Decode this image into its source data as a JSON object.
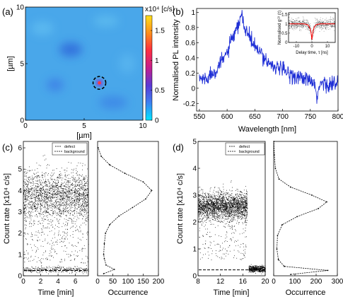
{
  "figure": {
    "panels": [
      {
        "id": "a",
        "label": "(a)"
      },
      {
        "id": "b",
        "label": "(b)"
      },
      {
        "id": "c",
        "label": "(c)"
      },
      {
        "id": "d",
        "label": "(d)"
      }
    ]
  },
  "chart_data": [
    {
      "panel": "(a)",
      "type": "heatmap",
      "title": "",
      "xlabel": "[µm]",
      "ylabel": "[µm]",
      "xlim": [
        0,
        10
      ],
      "ylim": [
        0,
        10
      ],
      "xticks": [
        "0",
        "5",
        "10"
      ],
      "yticks": [
        "0",
        "5",
        "10"
      ],
      "colorbar": {
        "label": "x10⁴ [c/s]",
        "range": [
          0,
          1.75
        ],
        "ticks": [
          "0",
          "0.5",
          "1",
          "1.5"
        ],
        "tick_values": [
          0,
          0.5,
          1,
          1.5
        ],
        "colors": [
          "#00e5ff",
          "#3f7ff0",
          "#5a3ad6",
          "#c41e8e",
          "#ff2e3f",
          "#ff8c1a",
          "#ffe01a"
        ]
      },
      "background_color": "#49a7ea",
      "marker": {
        "style": "dashed circle",
        "x": 6.3,
        "y": 3.3,
        "color": "#000000"
      },
      "hotspot": {
        "x": 6.3,
        "y": 3.3,
        "value": 1.6
      }
    },
    {
      "panel": "(b)",
      "type": "line",
      "title": "",
      "xlabel": "Wavelength [nm]",
      "ylabel": "Normalised PL intensity",
      "xlim": [
        545,
        800
      ],
      "ylim": [
        -0.3,
        1.05
      ],
      "xticks": [
        550,
        600,
        650,
        700,
        750,
        800
      ],
      "yticks": [
        -0.2,
        0,
        0.2,
        0.4,
        0.6,
        0.8,
        1
      ],
      "series": [
        {
          "color": "#1f2fd6",
          "x": [
            550,
            560,
            570,
            580,
            590,
            600,
            605,
            610,
            615,
            620,
            623,
            626,
            628,
            632,
            638,
            645,
            655,
            665,
            675,
            690,
            705,
            720,
            735,
            750,
            757,
            762,
            770,
            785,
            800
          ],
          "y": [
            0.13,
            0.12,
            0.18,
            0.25,
            0.34,
            0.48,
            0.56,
            0.66,
            0.72,
            0.8,
            0.9,
            1.0,
            0.88,
            0.78,
            0.72,
            0.6,
            0.5,
            0.42,
            0.34,
            0.27,
            0.22,
            0.17,
            0.13,
            0.1,
            0.02,
            -0.1,
            0.07,
            0.06,
            0.04
          ]
        }
      ],
      "inset": {
        "type": "scatter",
        "xlabel": "Delay time, τ [ns]",
        "ylabel": "Normalised g⁽²⁾ (τ)",
        "xlim": [
          -15,
          15
        ],
        "ylim": [
          0,
          1.6
        ],
        "xticks": [
          "-10",
          "0",
          "10"
        ],
        "yticks": [
          "0",
          "0.5",
          "1",
          "1.5"
        ],
        "data_color": "#000000",
        "fit_color": "#ff0000",
        "baseline": 1.0,
        "dip_min": 0.15,
        "dip_center": 0
      }
    },
    {
      "panel": "(c)",
      "type": "scatter",
      "title": "",
      "xlabel": "Time [min]",
      "ylabel": "Count rate [x10⁴ c/s]",
      "xlim": [
        0,
        7.5
      ],
      "ylim": [
        0,
        6.3
      ],
      "xticks": [
        0,
        2,
        4,
        6
      ],
      "yticks": [
        0,
        1,
        2,
        3,
        4,
        5,
        6
      ],
      "legend": {
        "placement": "top-right",
        "entries": [
          "defect",
          "background"
        ]
      },
      "series": [
        {
          "name": "defect",
          "style": "dots",
          "color": "#000000",
          "bands": [
            {
              "center": 3.7,
              "spread": 0.9
            },
            {
              "center": 0.3,
              "spread": 0.1
            }
          ]
        },
        {
          "name": "background",
          "style": "dashed",
          "color": "#000000",
          "value": 0.25
        }
      ],
      "histogram": {
        "xlabel": "Occurrence",
        "xlim": [
          0,
          200
        ],
        "xticks": [
          0,
          50,
          100,
          150,
          200
        ],
        "y": [
          0.1,
          0.3,
          0.5,
          0.8,
          1.0,
          1.5,
          2.0,
          2.4,
          2.8,
          3.2,
          3.6,
          4.0,
          4.4,
          4.8,
          5.2,
          5.6,
          6.0
        ],
        "x": [
          20,
          55,
          28,
          22,
          20,
          22,
          26,
          40,
          70,
          115,
          158,
          178,
          150,
          90,
          40,
          12,
          2
        ]
      }
    },
    {
      "panel": "(d)",
      "type": "scatter",
      "title": "",
      "xlabel": "Time [min]",
      "ylabel": "Count rate [x10⁴ c/s]",
      "xlim": [
        8,
        20
      ],
      "ylim": [
        0,
        5
      ],
      "xticks": [
        8,
        12,
        16,
        20
      ],
      "yticks": [
        0,
        1,
        2,
        3,
        4,
        5
      ],
      "legend": {
        "placement": "top-right",
        "entries": [
          "defect",
          "background"
        ]
      },
      "series": [
        {
          "name": "defect",
          "style": "dots",
          "color": "#000000",
          "bands": [
            {
              "x_range": [
                8,
                16.8
              ],
              "center": 2.6,
              "spread": 0.35
            },
            {
              "x_range": [
                17,
                20
              ],
              "center": 0.25,
              "spread": 0.05
            }
          ]
        },
        {
          "name": "background",
          "style": "dashed",
          "color": "#000000",
          "value": 0.22
        }
      ],
      "histogram": {
        "xlabel": "Occurrence",
        "xlim": [
          0,
          300
        ],
        "xticks": [
          0,
          100,
          200,
          300
        ],
        "y": [
          0.05,
          0.2,
          0.35,
          0.6,
          1.0,
          1.5,
          1.9,
          2.2,
          2.5,
          2.75,
          3.0,
          3.3,
          3.6,
          4.0,
          4.5,
          5.0
        ],
        "x": [
          80,
          255,
          50,
          22,
          15,
          18,
          40,
          110,
          210,
          250,
          180,
          80,
          25,
          8,
          3,
          1
        ]
      }
    }
  ]
}
